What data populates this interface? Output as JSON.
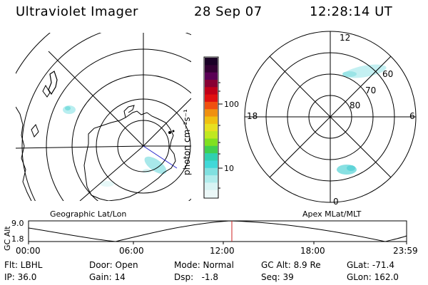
{
  "header": {
    "title": "Ultraviolet Imager",
    "date": "28 Sep 07",
    "time": "12:28:14 UT"
  },
  "colorbar": {
    "unit_label": "photon cm⁻²s⁻¹",
    "ticks": [
      "100",
      "10"
    ],
    "colors": [
      "#1a0026",
      "#330033",
      "#5a0055",
      "#880033",
      "#c00018",
      "#e01010",
      "#f05010",
      "#f09010",
      "#f0c010",
      "#e8e020",
      "#c0e820",
      "#80e020",
      "#40d050",
      "#30d0b0",
      "#40d8d8",
      "#80e0e0",
      "#b0ecec",
      "#d8f4f4",
      "#ecf8f8"
    ]
  },
  "geo_map": {
    "label": "Geographic Lat/Lon"
  },
  "polar_map": {
    "label": "Apex MLat/MLT",
    "mlt_labels": {
      "top": "12",
      "left": "18",
      "right": "6",
      "bottom": "0"
    },
    "lat_labels": [
      "60",
      "70",
      "80"
    ]
  },
  "altitude_plot": {
    "ylabel": "GC Alt",
    "yticks": [
      "9.0",
      "1.8"
    ],
    "xticks": [
      "00:00",
      "06:00",
      "12:00",
      "18:00",
      "23:59"
    ],
    "marker_color": "#cc2222"
  },
  "footer": {
    "flt": "Flt: LBHL",
    "ip": "IP: 36.0",
    "door": "Door: Open",
    "gain": "Gain: 14",
    "mode": "Mode: Normal",
    "dsp": "Dsp:   -1.8",
    "gc_alt": "GC Alt: 8.9 Re",
    "seq": "Seq: 39",
    "glat": "GLat: -71.4",
    "glon": "GLon: 162.0"
  }
}
